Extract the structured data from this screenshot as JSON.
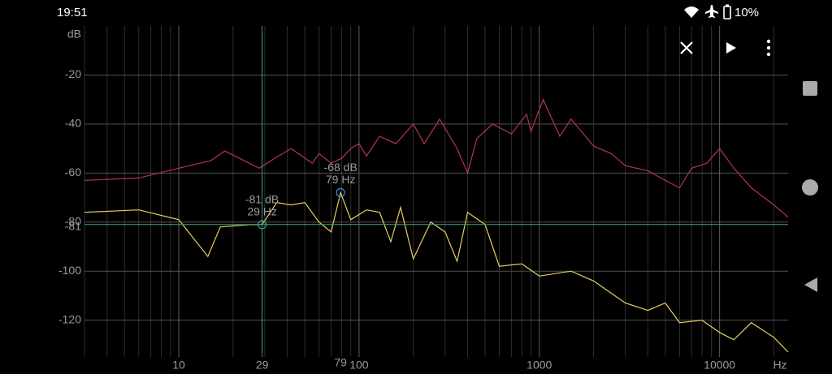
{
  "status_bar": {
    "time": "19:51",
    "battery": "10%"
  },
  "chart_data": {
    "type": "line",
    "xlog": true,
    "y_label": "dB",
    "x_label": "Hz",
    "xlim": [
      3,
      24000
    ],
    "ylim": [
      -135,
      0
    ],
    "xticks": [
      10,
      100,
      1000,
      10000
    ],
    "xgrid": [
      3,
      4,
      5,
      6,
      7,
      8,
      9,
      20,
      30,
      40,
      50,
      60,
      70,
      80,
      90,
      200,
      300,
      400,
      500,
      600,
      700,
      800,
      900,
      2000,
      3000,
      4000,
      5000,
      6000,
      7000,
      8000,
      9000,
      20000
    ],
    "yticks": [
      -20,
      -40,
      -60,
      -80,
      -100,
      -120
    ],
    "grid": true,
    "series": [
      {
        "color": "#b83448",
        "x": [
          3,
          6,
          10,
          15,
          18,
          28,
          34,
          42,
          55,
          60,
          70,
          80,
          90,
          100,
          110,
          130,
          160,
          200,
          230,
          280,
          350,
          400,
          450,
          550,
          700,
          850,
          900,
          1050,
          1300,
          1500,
          2000,
          2500,
          3000,
          4000,
          5000,
          6000,
          7000,
          8500,
          10000,
          12000,
          15000,
          20000,
          24000
        ],
        "values": [
          -63,
          -62,
          -58,
          -55,
          -51,
          -58,
          -54,
          -50,
          -56,
          -52,
          -56,
          -54,
          -50,
          -48,
          -53,
          -45,
          -48,
          -40,
          -48,
          -38,
          -50,
          -60,
          -46,
          -40,
          -44,
          -36,
          -43,
          -30,
          -45,
          -38,
          -49,
          -52,
          -57,
          -59,
          -63,
          -66,
          -58,
          -56,
          -50,
          -58,
          -66,
          -73,
          -78
        ]
      },
      {
        "color": "#e8d060",
        "x": [
          3,
          6,
          10,
          14.5,
          17,
          25,
          29,
          35,
          42,
          50,
          60,
          70,
          79,
          90,
          110,
          130,
          150,
          170,
          200,
          250,
          300,
          350,
          400,
          500,
          600,
          800,
          1000,
          1500,
          2000,
          3000,
          4000,
          5000,
          6000,
          8000,
          10000,
          12000,
          15000,
          20000,
          24000
        ],
        "values": [
          -76,
          -75,
          -79,
          -94,
          -82,
          -81,
          -81,
          -72,
          -73,
          -72,
          -80,
          -84,
          -68,
          -79,
          -75,
          -76,
          -88,
          -74,
          -95,
          -80,
          -84,
          -96,
          -76,
          -81,
          -98,
          -97,
          -102,
          -100,
          -104,
          -113,
          -116,
          -113,
          -121,
          -120,
          -125,
          -128,
          -121,
          -127,
          -133
        ]
      }
    ],
    "cursors": [
      {
        "color": "#3fa07a",
        "x": 29,
        "y": -81,
        "y_label": "-81 dB",
        "x_label": "29 Hz"
      },
      {
        "color": "#4a8ad6",
        "x": 79,
        "y": -68,
        "y_label": "-68 dB",
        "x_label": "79 Hz"
      }
    ]
  }
}
